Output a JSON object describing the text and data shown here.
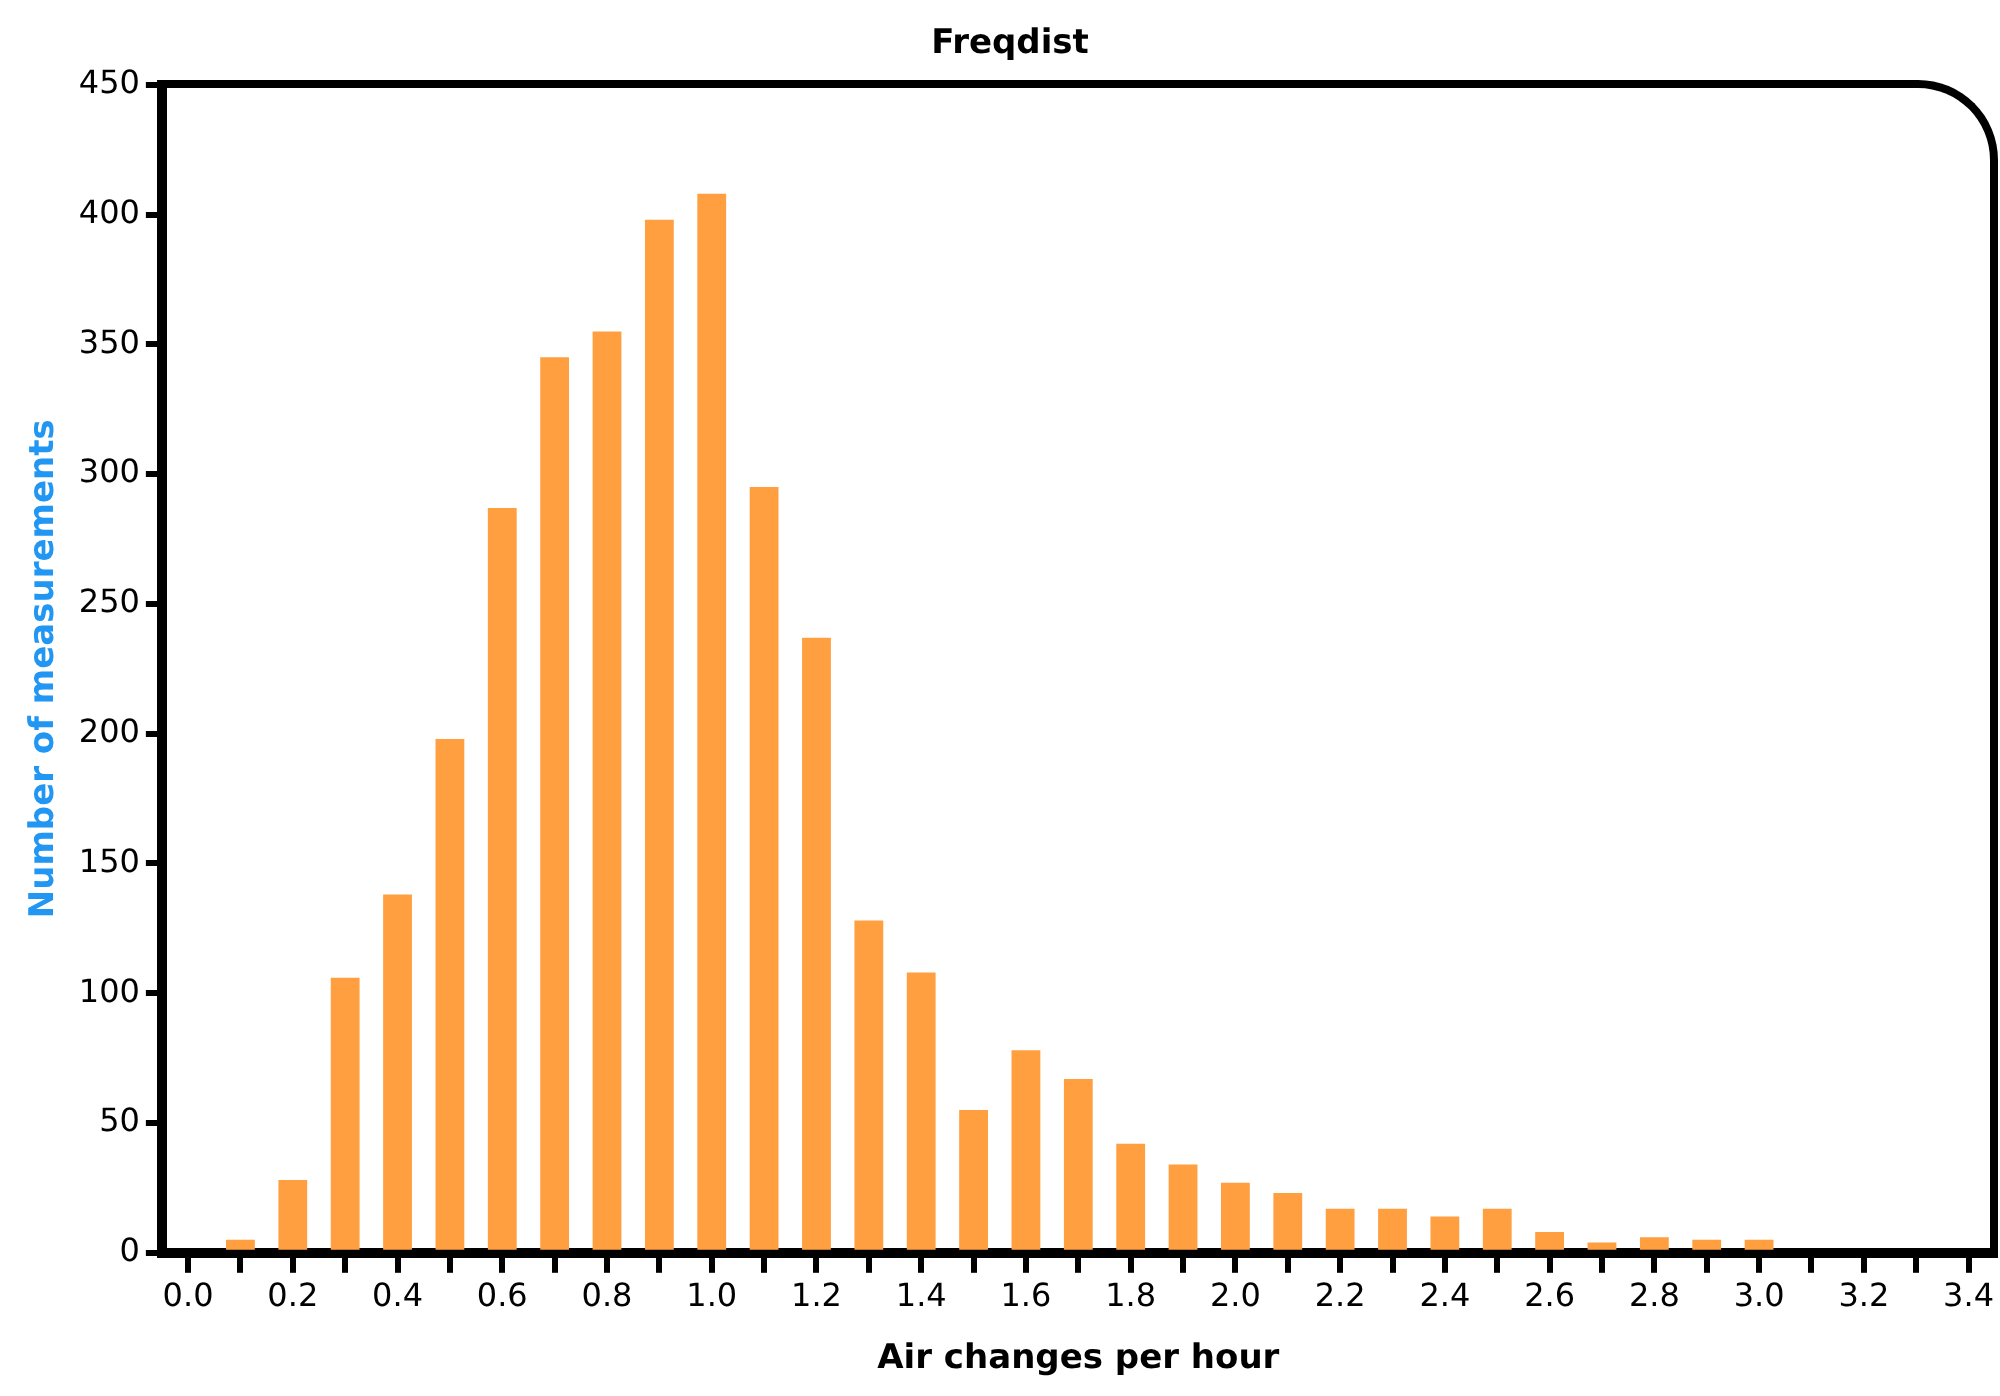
{
  "chart_data": {
    "type": "bar",
    "title": "Freqdist",
    "xlabel": "Air changes per hour",
    "ylabel": "Number of measurements",
    "color": "#ff9f40",
    "x": [
      0.1,
      0.2,
      0.3,
      0.4,
      0.5,
      0.6,
      0.7,
      0.8,
      0.9,
      1.0,
      1.1,
      1.2,
      1.3,
      1.4,
      1.5,
      1.6,
      1.7,
      1.8,
      1.9,
      2.0,
      2.1,
      2.2,
      2.3,
      2.4,
      2.5,
      2.6,
      2.7,
      2.8,
      2.9,
      3.0
    ],
    "values": [
      5,
      28,
      106,
      138,
      198,
      287,
      345,
      355,
      398,
      408,
      295,
      237,
      128,
      108,
      55,
      78,
      67,
      42,
      34,
      27,
      23,
      17,
      17,
      14,
      17,
      8,
      4,
      6,
      5,
      5
    ],
    "xlim": [
      -0.05,
      3.45
    ],
    "xticks": [
      {
        "value": 0,
        "label": "0.0"
      },
      {
        "value": 0.1,
        "label": null
      },
      {
        "value": 0.2,
        "label": "0.2"
      },
      {
        "value": 0.3,
        "label": null
      },
      {
        "value": 0.4,
        "label": "0.4"
      },
      {
        "value": 0.5,
        "label": null
      },
      {
        "value": 0.6,
        "label": "0.6"
      },
      {
        "value": 0.7,
        "label": null
      },
      {
        "value": 0.8,
        "label": "0.8"
      },
      {
        "value": 0.9,
        "label": null
      },
      {
        "value": 1.0,
        "label": "1.0"
      },
      {
        "value": 1.1,
        "label": null
      },
      {
        "value": 1.2,
        "label": "1.2"
      },
      {
        "value": 1.3,
        "label": null
      },
      {
        "value": 1.4,
        "label": "1.4"
      },
      {
        "value": 1.5,
        "label": null
      },
      {
        "value": 1.6,
        "label": "1.6"
      },
      {
        "value": 1.7,
        "label": null
      },
      {
        "value": 1.8,
        "label": "1.8"
      },
      {
        "value": 1.9,
        "label": null
      },
      {
        "value": 2.0,
        "label": "2.0"
      },
      {
        "value": 2.1,
        "label": null
      },
      {
        "value": 2.2,
        "label": "2.2"
      },
      {
        "value": 2.3,
        "label": null
      },
      {
        "value": 2.4,
        "label": "2.4"
      },
      {
        "value": 2.5,
        "label": null
      },
      {
        "value": 2.6,
        "label": "2.6"
      },
      {
        "value": 2.7,
        "label": null
      },
      {
        "value": 2.8,
        "label": "2.8"
      },
      {
        "value": 2.9,
        "label": null
      },
      {
        "value": 3.0,
        "label": "3.0"
      },
      {
        "value": 3.1,
        "label": null
      },
      {
        "value": 3.2,
        "label": "3.2"
      },
      {
        "value": 3.3,
        "label": null
      },
      {
        "value": 3.4,
        "label": "3.4"
      }
    ],
    "ylim": [
      0,
      450
    ],
    "yticks": [
      0,
      50,
      100,
      150,
      200,
      250,
      300,
      350,
      400,
      450
    ],
    "grid": false,
    "legend": false
  }
}
